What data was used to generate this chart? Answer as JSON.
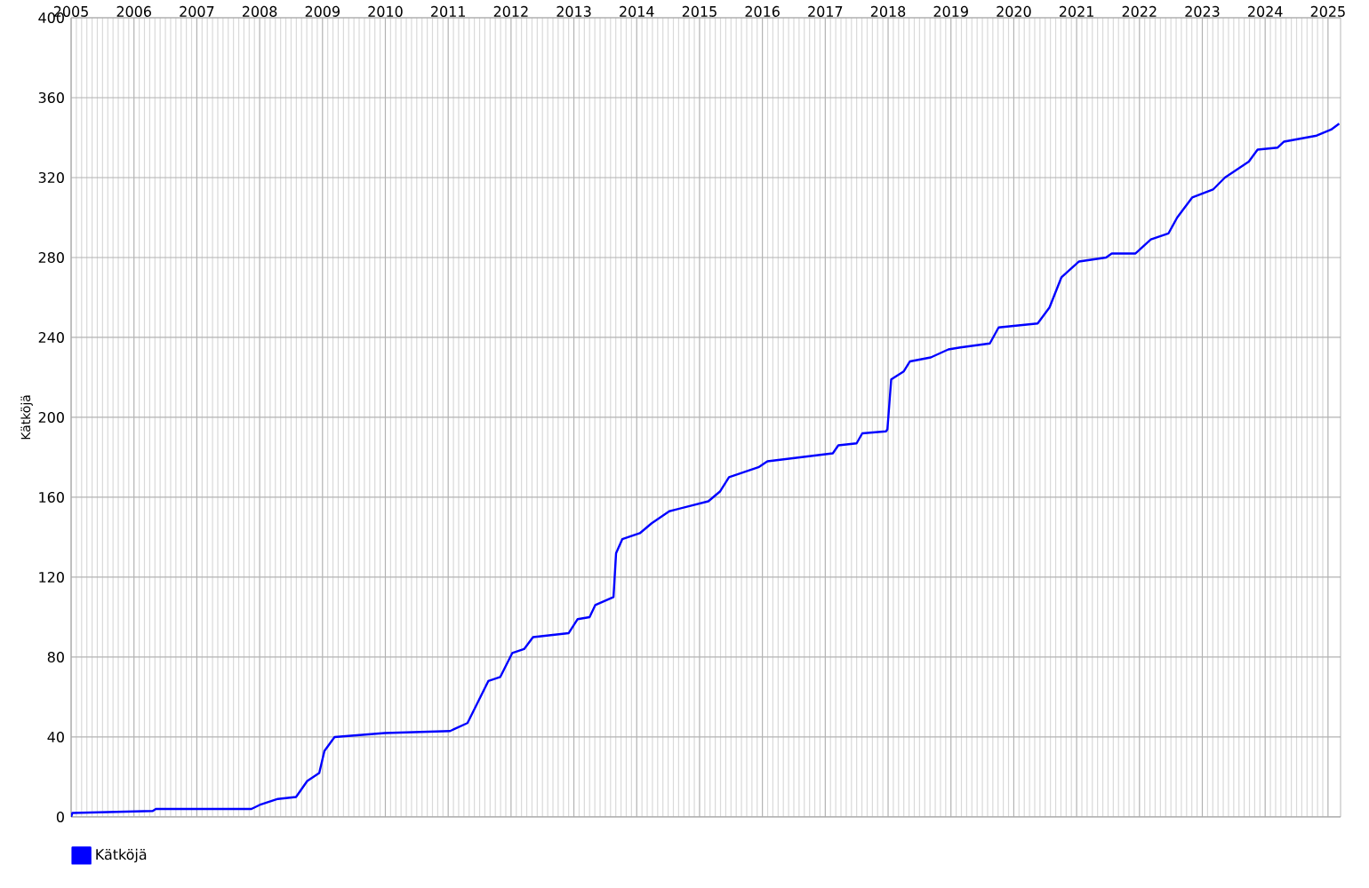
{
  "chart_data": {
    "type": "line",
    "ylabel": "Kätköjä",
    "x": [
      "2005-01-01",
      "2005-01-08",
      "2006-04-20",
      "2006-05-08",
      "2007-11-14",
      "2008-01-01",
      "2008-04-16",
      "2008-07-31",
      "2008-10-04",
      "2008-12-13",
      "2009-01-12",
      "2009-03-12",
      "2009-12-28",
      "2011-01-12",
      "2011-04-23",
      "2011-08-22",
      "2011-10-30",
      "2012-01-08",
      "2012-03-17",
      "2012-05-08",
      "2012-12-02",
      "2013-01-23",
      "2013-04-02",
      "2013-05-05",
      "2013-08-19",
      "2013-09-03",
      "2013-10-09",
      "2014-01-19",
      "2014-03-29",
      "2014-07-09",
      "2015-02-21",
      "2015-05-01",
      "2015-06-21",
      "2015-12-09",
      "2016-01-30",
      "2017-02-14",
      "2017-03-18",
      "2017-07-02",
      "2017-08-04",
      "2017-12-20",
      "2017-12-28",
      "2018-01-19",
      "2018-04-02",
      "2018-05-08",
      "2018-09-06",
      "2018-12-17",
      "2019-02-25",
      "2019-08-15",
      "2019-10-05",
      "2020-05-19",
      "2020-07-27",
      "2020-10-04",
      "2021-01-15",
      "2021-06-21",
      "2021-07-24",
      "2021-12-09",
      "2022-03-08",
      "2022-06-18",
      "2022-08-08",
      "2022-11-03",
      "2023-03-04",
      "2023-05-12",
      "2023-09-28",
      "2023-11-18",
      "2024-03-14",
      "2024-04-20",
      "2024-10-27",
      "2025-01-19",
      "2025-03-07"
    ],
    "series": [
      {
        "name": "Kätköjä",
        "color": "#0000ff",
        "values": [
          0,
          2,
          3,
          4,
          4,
          6,
          9,
          10,
          18,
          22,
          33,
          40,
          42,
          43,
          47,
          68,
          70,
          82,
          84,
          90,
          92,
          99,
          100,
          106,
          110,
          132,
          139,
          142,
          147,
          153,
          158,
          163,
          170,
          175,
          178,
          182,
          186,
          187,
          192,
          193,
          194,
          219,
          223,
          228,
          230,
          234,
          235,
          237,
          245,
          247,
          255,
          270,
          278,
          280,
          282,
          282,
          289,
          292,
          300,
          310,
          314,
          320,
          328,
          334,
          335,
          338,
          341,
          344,
          347
        ]
      }
    ],
    "xlim": [
      "2005-01-01",
      "2025-03-15"
    ],
    "xticks": [
      "2005",
      "2006",
      "2007",
      "2008",
      "2009",
      "2010",
      "2011",
      "2012",
      "2013",
      "2014",
      "2015",
      "2016",
      "2017",
      "2018",
      "2019",
      "2020",
      "2021",
      "2022",
      "2023",
      "2024",
      "2025"
    ],
    "ylim": [
      0,
      400
    ],
    "yticks": [
      0,
      40,
      80,
      120,
      160,
      200,
      240,
      280,
      320,
      360,
      400
    ],
    "grid": true,
    "legend": "bottom left",
    "marker": "none",
    "line_style": "solid"
  }
}
